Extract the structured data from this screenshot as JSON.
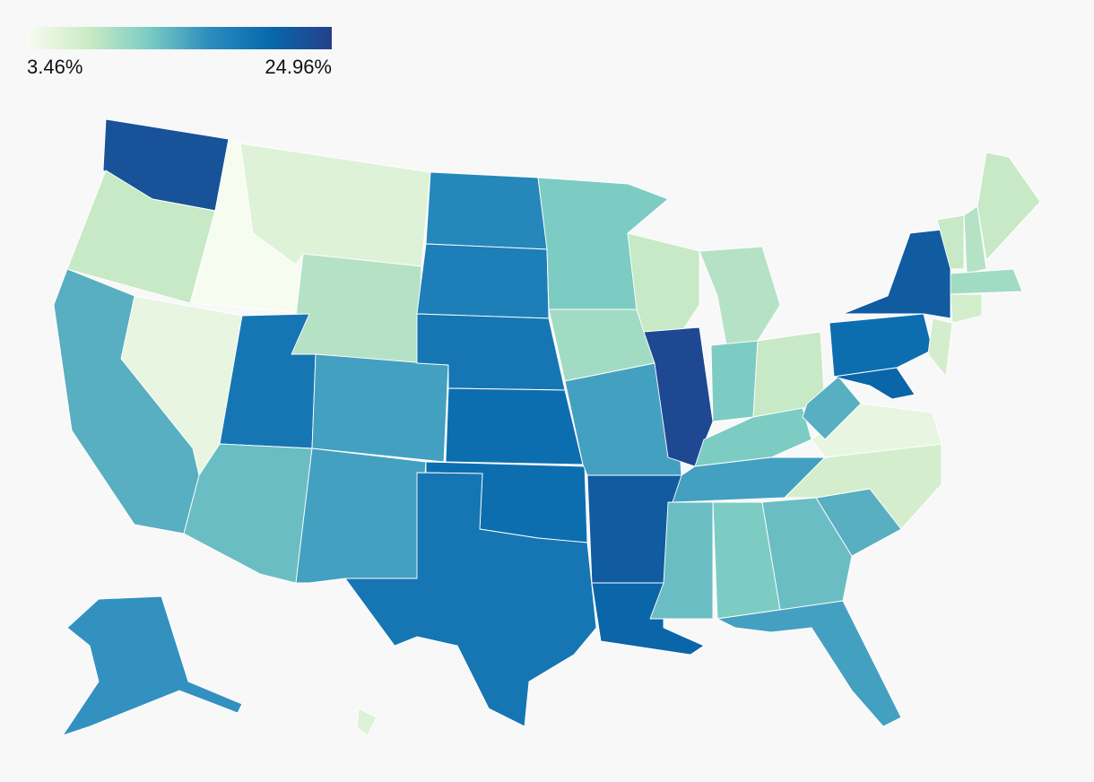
{
  "map": {
    "legend": {
      "min": {
        "value": 3.46,
        "label": "3.46%"
      },
      "max": {
        "value": 24.96,
        "label": "24.96%"
      },
      "colors": [
        "#f7fcf0",
        "#ccebc5",
        "#7bccc4",
        "#2b8cbe",
        "#0868ac",
        "#253f8a"
      ]
    },
    "regions": [
      23,
      8,
      3.5,
      6,
      9,
      5,
      14,
      19,
      13,
      15,
      15,
      17,
      18,
      19,
      20,
      20,
      19,
      12,
      10,
      15,
      22,
      21,
      8,
      24,
      9,
      12,
      8,
      12,
      15,
      13,
      12,
      13,
      15,
      14,
      7,
      5,
      14,
      20,
      22,
      21,
      7,
      8,
      9,
      8,
      10,
      7,
      16,
      6
    ]
  }
}
